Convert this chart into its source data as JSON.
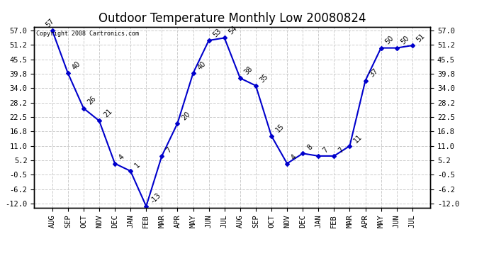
{
  "title": "Outdoor Temperature Monthly Low 20080824",
  "copyright": "Copyright 2008 Cartronics.com",
  "categories": [
    "AUG",
    "SEP",
    "OCT",
    "NOV",
    "DEC",
    "JAN",
    "FEB",
    "MAR",
    "APR",
    "MAY",
    "JUN",
    "JUL",
    "AUG",
    "SEP",
    "OCT",
    "NOV",
    "DEC",
    "JAN",
    "FEB",
    "MAR",
    "APR",
    "MAY",
    "JUN",
    "JUL"
  ],
  "values": [
    57,
    40,
    26,
    21,
    4,
    1,
    -13,
    7,
    20,
    40,
    53,
    54,
    38,
    35,
    15,
    4,
    8,
    7,
    7,
    11,
    37,
    50,
    50,
    51
  ],
  "yticks": [
    -12.0,
    -6.2,
    -0.5,
    5.2,
    11.0,
    16.8,
    22.5,
    28.2,
    34.0,
    39.8,
    45.5,
    51.2,
    57.0
  ],
  "ylim": [
    -13.5,
    58.5
  ],
  "line_color": "#0000cc",
  "marker_color": "#0000cc",
  "bg_color": "#ffffff",
  "grid_color": "#cccccc",
  "title_fontsize": 12,
  "tick_fontsize": 7.5,
  "annot_fontsize": 7
}
